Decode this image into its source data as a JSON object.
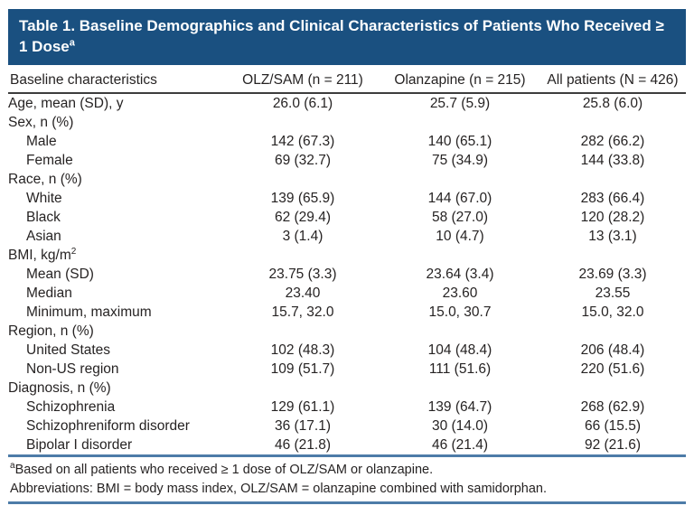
{
  "table": {
    "title": "Table 1. Baseline Demographics and Clinical Characteristics of Patients Who Received ≥ 1 Dose",
    "title_superscript": "a",
    "columns": [
      "Baseline characteristics",
      "OLZ/SAM (n = 211)",
      "Olanzapine (n = 215)",
      "All patients (N = 426)"
    ],
    "rows": [
      {
        "label": "Age, mean (SD), y",
        "indent": false,
        "values": [
          "26.0 (6.1)",
          "25.7 (5.9)",
          "25.8 (6.0)"
        ]
      },
      {
        "label": "Sex, n (%)",
        "indent": false,
        "values": [
          "",
          "",
          ""
        ]
      },
      {
        "label": "Male",
        "indent": true,
        "values": [
          "142 (67.3)",
          "140 (65.1)",
          "282 (66.2)"
        ]
      },
      {
        "label": "Female",
        "indent": true,
        "values": [
          "69 (32.7)",
          "75 (34.9)",
          "144 (33.8)"
        ]
      },
      {
        "label": "Race, n (%)",
        "indent": false,
        "values": [
          "",
          "",
          ""
        ]
      },
      {
        "label": "White",
        "indent": true,
        "values": [
          "139 (65.9)",
          "144 (67.0)",
          "283 (66.4)"
        ]
      },
      {
        "label": "Black",
        "indent": true,
        "values": [
          "62 (29.4)",
          "58 (27.0)",
          "120 (28.2)"
        ]
      },
      {
        "label": "Asian",
        "indent": true,
        "values": [
          "3 (1.4)",
          "10 (4.7)",
          "13 (3.1)"
        ]
      },
      {
        "label": "BMI, kg/m",
        "label_superscript": "2",
        "indent": false,
        "values": [
          "",
          "",
          ""
        ]
      },
      {
        "label": "Mean (SD)",
        "indent": true,
        "values": [
          "23.75 (3.3)",
          "23.64 (3.4)",
          "23.69 (3.3)"
        ]
      },
      {
        "label": "Median",
        "indent": true,
        "values": [
          "23.40",
          "23.60",
          "23.55"
        ]
      },
      {
        "label": "Minimum, maximum",
        "indent": true,
        "values": [
          "15.7, 32.0",
          "15.0, 30.7",
          "15.0, 32.0"
        ]
      },
      {
        "label": "Region, n (%)",
        "indent": false,
        "values": [
          "",
          "",
          ""
        ]
      },
      {
        "label": "United States",
        "indent": true,
        "values": [
          "102 (48.3)",
          "104 (48.4)",
          "206 (48.4)"
        ]
      },
      {
        "label": "Non-US region",
        "indent": true,
        "values": [
          "109 (51.7)",
          "111 (51.6)",
          "220 (51.6)"
        ]
      },
      {
        "label": "Diagnosis, n (%)",
        "indent": false,
        "values": [
          "",
          "",
          ""
        ]
      },
      {
        "label": "Schizophrenia",
        "indent": true,
        "values": [
          "129 (61.1)",
          "139 (64.7)",
          "268 (62.9)"
        ]
      },
      {
        "label": "Schizophreniform disorder",
        "indent": true,
        "values": [
          "36 (17.1)",
          "30 (14.0)",
          "66 (15.5)"
        ]
      },
      {
        "label": "Bipolar I disorder",
        "indent": true,
        "values": [
          "46 (21.8)",
          "46 (21.4)",
          "92 (21.6)"
        ]
      }
    ],
    "footnotes": [
      {
        "superscript": "a",
        "text": "Based on all patients who received ≥ 1 dose of OLZ/SAM or olanzapine."
      },
      {
        "superscript": "",
        "text": "Abbreviations: BMI = body mass index, OLZ/SAM = olanzapine combined with samidorphan."
      }
    ],
    "colors": {
      "header_bg": "#1a5080",
      "header_text": "#ffffff",
      "rule_dark": "#3d3d3d",
      "rule_blue": "#4d7ca8",
      "body_text": "#262323"
    }
  }
}
